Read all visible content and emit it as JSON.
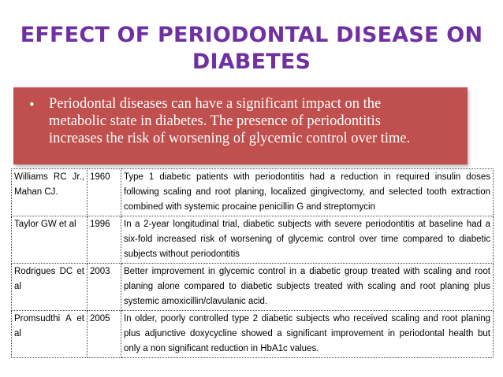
{
  "slide": {
    "title_line1": "EFFECT OF PERIODONTAL DISEASE ON",
    "title_line2": "DIABETES",
    "bullet": {
      "marker": "•",
      "line1": "Periodontal diseases can have a significant impact on the",
      "line2": "metabolic state in diabetes. The presence of periodontitis",
      "line3": "increases the risk of worsening of glycemic control over time."
    },
    "colors": {
      "title": "#7030a0",
      "bullet_box": "#c0504d",
      "bullet_text": "#ffffff"
    }
  },
  "table": {
    "rows": [
      {
        "author": "Williams RC Jr., Mahan CJ.",
        "year": "1960",
        "detail": "Type 1 diabetic patients with periodontitis had a reduction in required insulin doses following scaling and root planing, localized gingivectomy, and selected tooth extraction combined with systemic procaine penicillin G and streptomycin"
      },
      {
        "author": "Taylor GW et al",
        "year": "1996",
        "detail": "In a 2-year longitudinal trial, diabetic subjects with severe periodontitis at baseline had a six-fold increased risk of worsening of glycemic control over time compared to diabetic subjects without periodontitis"
      },
      {
        "author": "Rodrigues DC et al",
        "year": "2003",
        "detail": "Better improvement in glycemic control in a diabetic group treated with scaling and root planing alone compared to diabetic subjects treated with scaling and root planing plus systemic amoxicillin/clavulanic acid."
      },
      {
        "author": "Promsudthi A et al",
        "year": "2005",
        "detail": "In older, poorly controlled type 2 diabetic subjects who received scaling and root planing plus adjunctive doxycycline showed a significant improvement in periodontal health but only a non significant reduction in HbA1c values."
      }
    ]
  }
}
